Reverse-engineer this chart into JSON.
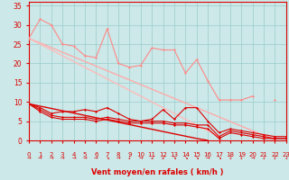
{
  "x": [
    0,
    1,
    2,
    3,
    4,
    5,
    6,
    7,
    8,
    9,
    10,
    11,
    12,
    13,
    14,
    15,
    16,
    17,
    18,
    19,
    20,
    21,
    22,
    23
  ],
  "series": [
    {
      "name": "dark_wavy1",
      "color": "#dd0000",
      "lw": 0.8,
      "marker": "D",
      "ms": 1.5,
      "y": [
        9.5,
        8.5,
        7.0,
        7.5,
        7.5,
        8.0,
        7.5,
        8.5,
        7.0,
        5.5,
        5.0,
        5.5,
        8.0,
        5.5,
        8.5,
        8.5,
        5.0,
        2.0,
        3.0,
        2.5,
        2.0,
        1.5,
        1.0,
        1.0
      ]
    },
    {
      "name": "dark_wavy2",
      "color": "#dd0000",
      "lw": 0.8,
      "marker": "D",
      "ms": 1.5,
      "y": [
        9.5,
        8.0,
        6.5,
        6.0,
        6.0,
        6.0,
        5.5,
        6.0,
        5.5,
        5.0,
        5.0,
        5.0,
        5.0,
        4.5,
        4.5,
        4.0,
        4.0,
        1.0,
        2.5,
        2.0,
        1.5,
        1.0,
        0.5,
        0.5
      ]
    },
    {
      "name": "dark_wavy3",
      "color": "#dd0000",
      "lw": 0.8,
      "marker": "D",
      "ms": 1.5,
      "y": [
        9.5,
        7.5,
        6.0,
        5.5,
        5.5,
        5.5,
        5.0,
        5.5,
        5.0,
        4.5,
        4.5,
        4.5,
        4.5,
        4.0,
        4.0,
        3.5,
        3.0,
        0.5,
        2.0,
        1.5,
        1.0,
        0.5,
        0.5,
        0.5
      ]
    },
    {
      "name": "dark_straight",
      "color": "#dd0000",
      "lw": 1.0,
      "marker": null,
      "ms": 0,
      "y": [
        9.5,
        8.9,
        8.3,
        7.7,
        7.1,
        6.5,
        5.9,
        5.3,
        4.7,
        4.1,
        3.5,
        2.9,
        2.3,
        1.7,
        1.1,
        0.5,
        0.0,
        null,
        null,
        null,
        null,
        null,
        null,
        null
      ]
    },
    {
      "name": "pink_wavy",
      "color": "#ff8888",
      "lw": 0.8,
      "marker": "D",
      "ms": 1.5,
      "y": [
        26.5,
        31.5,
        30.0,
        25.0,
        24.5,
        22.0,
        21.5,
        29.0,
        20.0,
        19.0,
        19.5,
        24.0,
        23.5,
        23.5,
        17.5,
        21.0,
        15.5,
        10.5,
        10.5,
        10.5,
        11.5,
        null,
        10.5,
        null
      ]
    },
    {
      "name": "pink_straight1",
      "color": "#ffaaaa",
      "lw": 1.0,
      "marker": null,
      "ms": 0,
      "y": [
        26.5,
        25.3,
        24.1,
        22.9,
        21.7,
        20.5,
        19.3,
        18.1,
        16.9,
        15.7,
        14.5,
        13.3,
        12.1,
        10.9,
        9.7,
        8.5,
        7.3,
        6.1,
        4.9,
        3.7,
        2.5,
        1.3,
        0.1,
        null
      ]
    },
    {
      "name": "pink_straight2",
      "color": "#ffbbbb",
      "lw": 1.0,
      "marker": null,
      "ms": 0,
      "y": [
        26.5,
        25.0,
        23.5,
        22.0,
        20.5,
        19.0,
        17.5,
        16.0,
        14.5,
        13.0,
        11.5,
        10.0,
        8.5,
        7.0,
        5.5,
        4.0,
        2.5,
        1.0,
        null,
        null,
        null,
        null,
        null,
        null
      ]
    }
  ],
  "arrow_chars": [
    "→",
    "→",
    "→",
    "→",
    "→",
    "→",
    "→",
    "↘",
    "→",
    "↓",
    "→",
    "↙",
    "↙",
    "↘",
    "↘",
    "↘",
    "→",
    "↘",
    "↓",
    "↓",
    "→",
    "↓",
    "↓",
    "↓"
  ],
  "xlim": [
    0,
    23
  ],
  "ylim": [
    0,
    36
  ],
  "yticks": [
    0,
    5,
    10,
    15,
    20,
    25,
    30,
    35
  ],
  "xticks": [
    0,
    1,
    2,
    3,
    4,
    5,
    6,
    7,
    8,
    9,
    10,
    11,
    12,
    13,
    14,
    15,
    16,
    17,
    18,
    19,
    20,
    21,
    22,
    23
  ],
  "xlabel": "Vent moyen/en rafales ( km/h )",
  "bg_color": "#cce8e8",
  "grid_color": "#99cccc",
  "axis_color": "#dd0000",
  "label_color": "#dd0000",
  "tick_color": "#dd0000"
}
